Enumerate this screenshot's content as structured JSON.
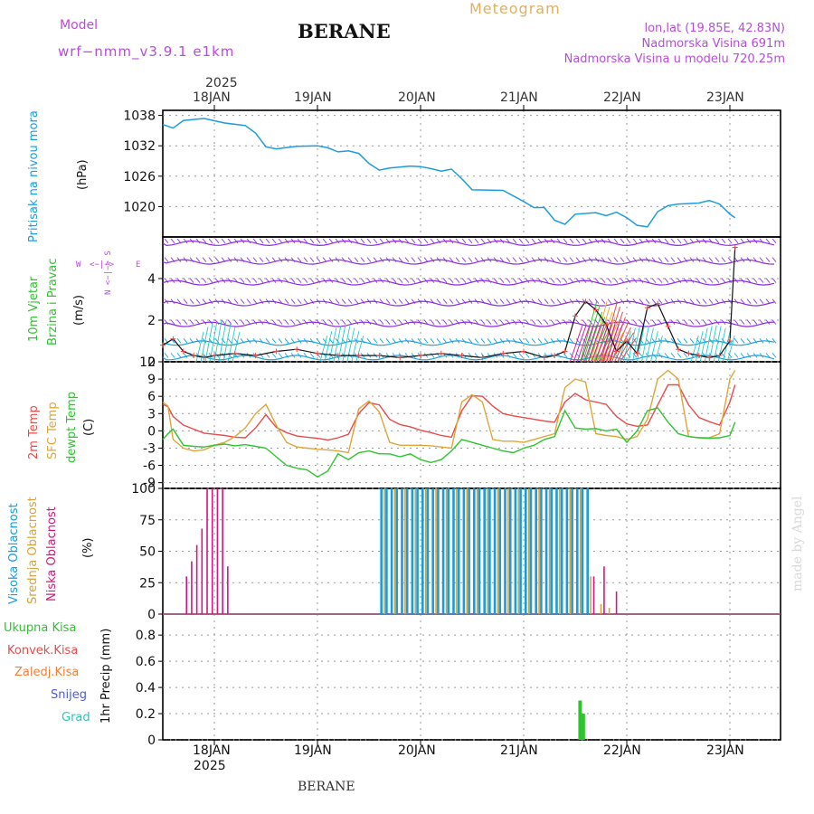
{
  "header": {
    "model_label": "Model",
    "model_name": "wrf−nmm_v3.9.1  e1km",
    "station": "BERANE",
    "app_title": "Meteogram",
    "coords": "lon,lat (19.85E, 42.83N)",
    "elevation": "Nadmorska Visina 691m",
    "model_elevation": "Nadmorska Visina u modelu 720.25m"
  },
  "footer": {
    "station": "BERANE",
    "credit": "made by Angel"
  },
  "colors": {
    "pressure": "#1e9be0",
    "temp2m": "#e84b4b",
    "sfc": "#e0a53a",
    "dewpt": "#2ec42e",
    "high_cloud": "#1a9be0",
    "mid_cloud": "#d8a23a",
    "low_cloud": "#d0187f",
    "total_precip": "#2ec42e",
    "conv_precip": "#e84b4b",
    "frozen_precip": "#f0803a",
    "snow": "#4d5bd8",
    "hail": "#2ec4b4",
    "label_purple": "#b84be0"
  },
  "x_axis": {
    "year_top": "2025",
    "year_bottom": "2025",
    "day_labels": [
      "18JAN",
      "19JAN",
      "20JAN",
      "21JAN",
      "22JAN",
      "23JAN"
    ]
  },
  "panels": {
    "pressure": {
      "title": "Pritisak na nivou mora",
      "unit": "(hPa)"
    },
    "wind": {
      "title1": "10m Vjetar",
      "title2": "Brzina i Pravac",
      "unit": "(m/s)",
      "compass_ns": "N <−|−> S",
      "compass_w": "W",
      "compass_e": "E",
      "compass_inner": "<−|−>"
    },
    "temp": {
      "label_2m": "2m Temp",
      "label_sfc": "SFC Temp",
      "label_dew": "dewpt Temp",
      "unit": "(C)"
    },
    "cloud": {
      "label_high": "Visoka Oblacnost",
      "label_mid": "Srednja Oblacnost",
      "label_low": "Niska Oblacnost",
      "unit": "(%)"
    },
    "precip": {
      "label_total": "Ukupna Kisa",
      "label_conv": "Konvek.Kisa",
      "label_frozen": "Zaledj.Kisa",
      "label_snow": "Snijeg",
      "label_hail": "Grad",
      "unit": "1hr Precip (mm)"
    }
  },
  "chart_data": [
    {
      "type": "line",
      "name": "pressure",
      "ylabel": "(hPa)",
      "ylim": [
        1014,
        1039
      ],
      "yticks": [
        1020,
        1026,
        1032,
        1038
      ],
      "x_days": [
        0.0,
        0.1,
        0.2,
        0.4,
        0.6,
        0.8,
        0.9,
        1.0,
        1.1,
        1.3,
        1.5,
        1.6,
        1.7,
        1.8,
        1.9,
        2.0,
        2.1,
        2.2,
        2.4,
        2.5,
        2.6,
        2.7,
        2.8,
        2.9,
        3.0,
        3.3,
        3.5,
        3.6,
        3.7,
        3.8,
        3.9,
        4.0,
        4.2,
        4.3,
        4.4,
        4.5,
        4.6,
        4.7,
        4.8,
        4.9,
        5.0,
        5.2,
        5.3,
        5.4,
        5.5,
        5.55
      ],
      "y": [
        1036.2,
        1035.5,
        1037.0,
        1037.4,
        1036.5,
        1036.0,
        1034.5,
        1031.8,
        1031.4,
        1031.9,
        1032.0,
        1031.6,
        1030.8,
        1031.0,
        1030.5,
        1028.5,
        1027.2,
        1027.6,
        1028.0,
        1027.9,
        1027.5,
        1027.0,
        1027.4,
        1025.5,
        1023.3,
        1023.2,
        1021.0,
        1019.8,
        1019.8,
        1017.3,
        1016.5,
        1018.5,
        1018.8,
        1018.2,
        1018.9,
        1017.8,
        1016.3,
        1016.0,
        1019.0,
        1020.2,
        1020.5,
        1020.7,
        1021.2,
        1020.5,
        1018.5,
        1017.8
      ]
    },
    {
      "type": "line",
      "name": "10m wind speed",
      "ylabel": "(m/s)",
      "ylim": [
        0,
        6
      ],
      "yticks": [
        0,
        2,
        4
      ],
      "x_days": [
        0.0,
        0.1,
        0.2,
        0.3,
        0.4,
        0.5,
        0.7,
        0.9,
        1.1,
        1.3,
        1.5,
        1.7,
        1.9,
        2.1,
        2.3,
        2.5,
        2.7,
        2.9,
        3.1,
        3.3,
        3.5,
        3.7,
        3.8,
        3.9,
        4.0,
        4.1,
        4.2,
        4.3,
        4.4,
        4.5,
        4.6,
        4.7,
        4.8,
        4.9,
        5.0,
        5.1,
        5.2,
        5.3,
        5.4,
        5.5,
        5.55
      ],
      "y": [
        0.8,
        1.1,
        0.5,
        0.3,
        0.2,
        0.3,
        0.4,
        0.3,
        0.5,
        0.6,
        0.4,
        0.3,
        0.3,
        0.3,
        0.2,
        0.3,
        0.4,
        0.3,
        0.2,
        0.4,
        0.5,
        0.2,
        0.3,
        0.5,
        2.2,
        2.9,
        2.5,
        1.8,
        0.5,
        1.0,
        0.4,
        2.6,
        2.8,
        1.7,
        0.6,
        0.4,
        0.3,
        0.2,
        0.3,
        1.0,
        5.5
      ]
    },
    {
      "type": "line",
      "name": "temperature",
      "ylabel": "(C)",
      "ylim": [
        -10,
        12
      ],
      "yticks": [
        -9,
        -6,
        -3,
        0,
        3,
        6,
        9,
        12
      ],
      "x_days": [
        0.0,
        0.05,
        0.1,
        0.2,
        0.3,
        0.4,
        0.5,
        0.6,
        0.7,
        0.8,
        0.9,
        1.0,
        1.1,
        1.2,
        1.3,
        1.4,
        1.5,
        1.6,
        1.7,
        1.8,
        1.9,
        2.0,
        2.1,
        2.2,
        2.3,
        2.4,
        2.5,
        2.6,
        2.7,
        2.8,
        2.9,
        3.0,
        3.1,
        3.2,
        3.3,
        3.4,
        3.5,
        3.6,
        3.7,
        3.8,
        3.9,
        4.0,
        4.1,
        4.2,
        4.3,
        4.4,
        4.5,
        4.6,
        4.7,
        4.8,
        4.9,
        5.0,
        5.1,
        5.2,
        5.3,
        5.4,
        5.5,
        5.55
      ],
      "series": [
        {
          "name": "2m Temp",
          "values": [
            4.6,
            4.2,
            2.5,
            1.0,
            0.3,
            -0.4,
            -0.6,
            -0.8,
            -1.1,
            -1.2,
            0.5,
            2.8,
            0.6,
            -0.3,
            -0.9,
            -1.1,
            -1.3,
            -1.6,
            -1.2,
            -0.6,
            3.0,
            4.9,
            4.5,
            2.0,
            1.1,
            0.7,
            0.1,
            -0.3,
            -0.8,
            -1.1,
            3.5,
            6.1,
            6.0,
            4.3,
            3.0,
            2.6,
            2.3,
            2.0,
            1.7,
            1.5,
            5.0,
            6.5,
            5.4,
            5.0,
            4.6,
            2.5,
            1.2,
            0.8,
            1.0,
            4.5,
            8.0,
            8.0,
            4.5,
            2.3,
            1.6,
            1.0,
            5.0,
            8.0
          ]
        },
        {
          "name": "SFC Temp",
          "values": [
            5.0,
            4.3,
            -1.5,
            -3.0,
            -3.5,
            -3.3,
            -2.5,
            -2.0,
            -1.0,
            0.5,
            3.0,
            4.6,
            1.0,
            -2.0,
            -2.8,
            -3.0,
            -3.2,
            -3.3,
            -3.5,
            -3.8,
            3.8,
            5.2,
            3.3,
            -2.0,
            -2.5,
            -2.5,
            -2.5,
            -2.6,
            -2.8,
            -3.0,
            5.0,
            6.3,
            5.0,
            -1.5,
            -1.8,
            -1.8,
            -2.0,
            -1.5,
            -1.0,
            -0.5,
            7.5,
            9.0,
            8.5,
            -0.5,
            -0.8,
            -1.0,
            -1.5,
            -1.0,
            2.0,
            9.0,
            10.5,
            9.0,
            -1.0,
            -1.2,
            -1.2,
            -0.5,
            9.0,
            10.5
          ]
        },
        {
          "name": "dewpt Temp",
          "values": [
            -1.5,
            -0.5,
            0.3,
            -2.5,
            -2.7,
            -2.8,
            -2.5,
            -2.3,
            -2.6,
            -2.4,
            -2.7,
            -3.0,
            -4.5,
            -6.0,
            -6.5,
            -6.8,
            -8.0,
            -7.0,
            -4.0,
            -5.0,
            -3.8,
            -3.5,
            -4.0,
            -4.0,
            -4.5,
            -4.0,
            -5.0,
            -5.5,
            -5.0,
            -3.5,
            -1.5,
            -2.0,
            -2.5,
            -3.0,
            -3.5,
            -3.8,
            -3.0,
            -2.5,
            -1.5,
            -1.0,
            3.5,
            0.5,
            0.3,
            0.4,
            0.0,
            0.3,
            -2.0,
            0.0,
            3.5,
            4.0,
            1.5,
            -0.5,
            -1.0,
            -1.2,
            -1.3,
            -1.2,
            -0.8,
            1.5
          ]
        }
      ]
    },
    {
      "type": "bar",
      "name": "cloud cover",
      "ylabel": "(%)",
      "ylim": [
        0,
        100
      ],
      "yticks": [
        0,
        25,
        50,
        75,
        100
      ],
      "series": [
        {
          "name": "Visoka Oblacnost",
          "x_days": [
            2.12,
            2.17,
            2.22,
            2.27,
            2.32,
            2.37,
            2.42,
            2.47,
            2.52,
            2.57,
            2.62,
            2.67,
            2.72,
            2.77,
            2.82,
            2.87,
            2.92,
            2.97,
            3.02,
            3.07,
            3.12,
            3.17,
            3.22,
            3.27,
            3.32,
            3.37,
            3.42,
            3.47,
            3.52,
            3.57,
            3.62,
            3.67,
            3.72,
            3.77,
            3.82,
            3.87,
            3.92,
            3.97,
            4.02,
            4.07,
            4.12
          ],
          "values": [
            100,
            100,
            100,
            100,
            100,
            100,
            100,
            100,
            100,
            100,
            100,
            100,
            100,
            100,
            100,
            100,
            100,
            100,
            100,
            100,
            100,
            100,
            100,
            100,
            100,
            100,
            100,
            100,
            100,
            100,
            100,
            100,
            100,
            100,
            100,
            100,
            100,
            100,
            100,
            100,
            100
          ]
        },
        {
          "name": "Srednja Oblacnost",
          "x_days": [
            2.15,
            2.25,
            2.35,
            2.45,
            2.55,
            2.65,
            2.75,
            2.85,
            2.95,
            3.05,
            3.15,
            3.25,
            3.35,
            3.45,
            3.55,
            3.65,
            3.75,
            3.85,
            3.95,
            4.05,
            4.15,
            4.25,
            4.33
          ],
          "values": [
            100,
            100,
            100,
            100,
            100,
            100,
            100,
            100,
            100,
            100,
            100,
            100,
            100,
            100,
            100,
            100,
            100,
            100,
            100,
            100,
            30,
            8,
            5
          ]
        },
        {
          "name": "Niska Oblacnost",
          "x_days": [
            0.23,
            0.28,
            0.33,
            0.38,
            0.43,
            0.48,
            0.53,
            0.58,
            0.63,
            4.18,
            4.28,
            4.4
          ],
          "values": [
            30,
            42,
            55,
            68,
            100,
            100,
            100,
            100,
            38,
            30,
            38,
            18
          ]
        }
      ]
    },
    {
      "type": "bar",
      "name": "1hr precipitation",
      "ylabel": "1hr Precip (mm)",
      "ylim": [
        0,
        0.96
      ],
      "yticks": [
        0,
        0.2,
        0.4,
        0.6,
        0.8
      ],
      "series": [
        {
          "name": "Ukupna Kisa",
          "x_days": [
            4.03,
            4.06
          ],
          "values": [
            0.3,
            0.2
          ]
        }
      ]
    }
  ]
}
